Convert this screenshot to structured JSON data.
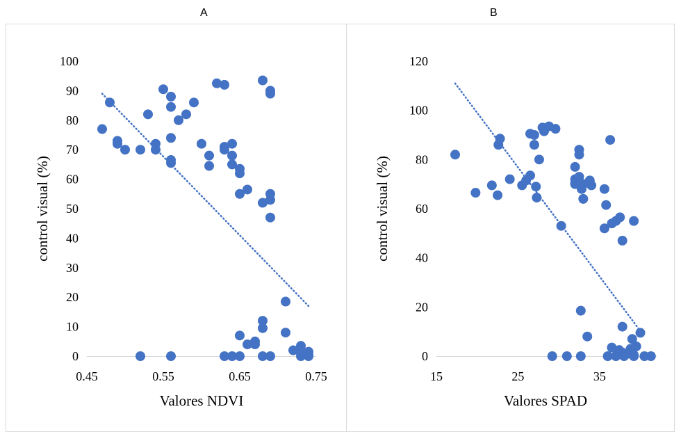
{
  "panels": [
    {
      "letter": "A",
      "chart_data": {
        "type": "scatter",
        "title": "",
        "xlabel": "Valores NDVI",
        "ylabel": "control visual (%)",
        "xlim": [
          0.45,
          0.75
        ],
        "ylim": [
          0,
          100
        ],
        "xticks": [
          "0.45",
          "0.55",
          "0.65",
          "0.75"
        ],
        "yticks": [
          "0",
          "10",
          "20",
          "30",
          "40",
          "50",
          "60",
          "70",
          "80",
          "90",
          "100"
        ],
        "grid": false,
        "legend": "none",
        "series": [
          {
            "color": "#4472c4",
            "points": [
              [
                0.47,
                77
              ],
              [
                0.48,
                86
              ],
              [
                0.49,
                73
              ],
              [
                0.49,
                72
              ],
              [
                0.5,
                70
              ],
              [
                0.52,
                70
              ],
              [
                0.53,
                82
              ],
              [
                0.54,
                72
              ],
              [
                0.54,
                70
              ],
              [
                0.55,
                90.5
              ],
              [
                0.56,
                88
              ],
              [
                0.56,
                84.5
              ],
              [
                0.56,
                74
              ],
              [
                0.56,
                66.5
              ],
              [
                0.56,
                65.5
              ],
              [
                0.57,
                80
              ],
              [
                0.58,
                82
              ],
              [
                0.59,
                86
              ],
              [
                0.6,
                72
              ],
              [
                0.61,
                68
              ],
              [
                0.61,
                64.5
              ],
              [
                0.62,
                92.5
              ],
              [
                0.63,
                92
              ],
              [
                0.63,
                71
              ],
              [
                0.63,
                70
              ],
              [
                0.64,
                72
              ],
              [
                0.64,
                68
              ],
              [
                0.64,
                65
              ],
              [
                0.65,
                63.5
              ],
              [
                0.65,
                62
              ],
              [
                0.65,
                55
              ],
              [
                0.66,
                56.5
              ],
              [
                0.68,
                93.5
              ],
              [
                0.68,
                52
              ],
              [
                0.69,
                90
              ],
              [
                0.69,
                89
              ],
              [
                0.69,
                55
              ],
              [
                0.69,
                53
              ],
              [
                0.69,
                47
              ],
              [
                0.71,
                18.5
              ],
              [
                0.68,
                12
              ],
              [
                0.68,
                9.5
              ],
              [
                0.71,
                8
              ],
              [
                0.65,
                7
              ],
              [
                0.66,
                4
              ],
              [
                0.67,
                5
              ],
              [
                0.67,
                4
              ],
              [
                0.72,
                2
              ],
              [
                0.73,
                3.5
              ],
              [
                0.73,
                2
              ],
              [
                0.73,
                1
              ],
              [
                0.74,
                1.5
              ],
              [
                0.74,
                0.5
              ],
              [
                0.52,
                0
              ],
              [
                0.56,
                0
              ],
              [
                0.63,
                0
              ],
              [
                0.64,
                0
              ],
              [
                0.65,
                0
              ],
              [
                0.68,
                0
              ],
              [
                0.69,
                0
              ],
              [
                0.73,
                0
              ],
              [
                0.74,
                0
              ]
            ]
          }
        ],
        "trendline": {
          "style": "dotted",
          "color": "#4472c4",
          "from": [
            0.47,
            89
          ],
          "to": [
            0.74,
            17
          ]
        }
      }
    },
    {
      "letter": "B",
      "chart_data": {
        "type": "scatter",
        "title": "",
        "xlabel": "Valores SPAD",
        "ylabel": "control visual (%)",
        "xlim": [
          15,
          42
        ],
        "ylim": [
          0,
          120
        ],
        "xticks": [
          "15",
          "25",
          "35"
        ],
        "yticks": [
          "0",
          "20",
          "40",
          "60",
          "80",
          "100",
          "120"
        ],
        "grid": false,
        "legend": "none",
        "series": [
          {
            "color": "#4472c4",
            "points": [
              [
                17.3,
                82
              ],
              [
                19.8,
                66.5
              ],
              [
                21.8,
                69.5
              ],
              [
                22.5,
                65.5
              ],
              [
                22.6,
                86
              ],
              [
                22.8,
                88.5
              ],
              [
                24,
                72
              ],
              [
                25.5,
                69.5
              ],
              [
                26,
                71.5
              ],
              [
                26.5,
                73.5
              ],
              [
                26.5,
                90.5
              ],
              [
                27,
                90
              ],
              [
                27,
                86
              ],
              [
                27.2,
                69
              ],
              [
                27.3,
                64.5
              ],
              [
                27.6,
                80
              ],
              [
                28,
                93
              ],
              [
                28.2,
                91.5
              ],
              [
                28.8,
                93.5
              ],
              [
                29.6,
                92.5
              ],
              [
                30.3,
                53
              ],
              [
                32,
                72
              ],
              [
                32,
                70.5
              ],
              [
                32,
                77
              ],
              [
                32,
                70
              ],
              [
                32.5,
                84
              ],
              [
                32.5,
                82
              ],
              [
                32.5,
                73
              ],
              [
                32.8,
                68
              ],
              [
                33,
                64
              ],
              [
                33,
                70
              ],
              [
                33.8,
                71.5
              ],
              [
                34,
                69.5
              ],
              [
                35.6,
                68
              ],
              [
                35.8,
                61.5
              ],
              [
                35.6,
                52
              ],
              [
                36.3,
                88
              ],
              [
                36.5,
                54
              ],
              [
                37,
                55
              ],
              [
                37.5,
                56.5
              ],
              [
                37.8,
                47
              ],
              [
                39.2,
                55
              ],
              [
                32.7,
                18.5
              ],
              [
                33.5,
                8
              ],
              [
                37.8,
                12
              ],
              [
                39,
                7
              ],
              [
                40,
                9.5
              ],
              [
                36.5,
                3.5
              ],
              [
                37.4,
                2.5
              ],
              [
                38.8,
                3
              ],
              [
                39.5,
                4
              ],
              [
                37.8,
                1.5
              ],
              [
                38.5,
                1
              ],
              [
                39.2,
                0.5
              ],
              [
                29.2,
                0
              ],
              [
                31,
                0
              ],
              [
                32.7,
                0
              ],
              [
                36,
                0
              ],
              [
                37,
                0
              ],
              [
                38,
                0
              ],
              [
                39.2,
                0
              ],
              [
                40.5,
                0
              ],
              [
                41.3,
                0
              ]
            ]
          }
        ],
        "trendline": {
          "style": "dotted",
          "color": "#4472c4",
          "from": [
            17.3,
            111
          ],
          "to": [
            40.5,
            8
          ]
        }
      }
    }
  ]
}
